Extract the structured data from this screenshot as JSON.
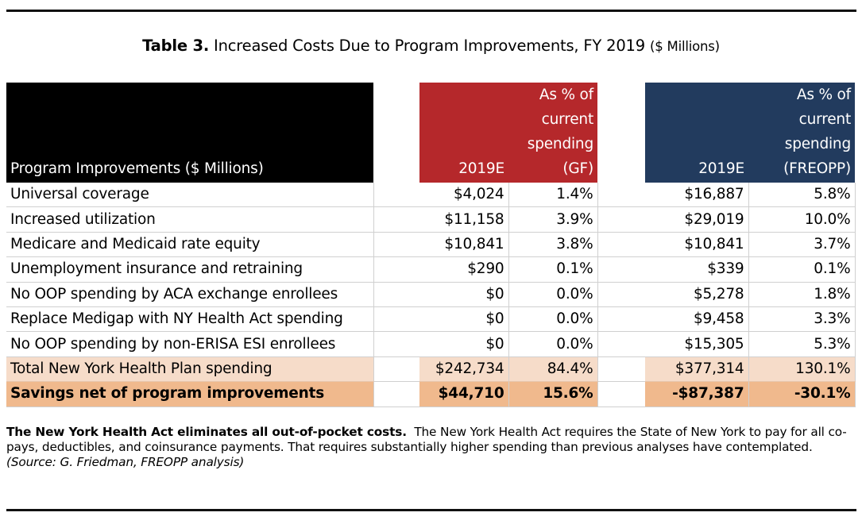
{
  "title": {
    "label": "Table 3.",
    "text": "Increased Costs Due to Program Improvements, FY 2019",
    "units": "($ Millions)"
  },
  "table": {
    "headers": {
      "label": "Program Improvements ($ Millions)",
      "gf_value": "2019E",
      "gf_pct": [
        "As % of",
        "current",
        "spending",
        "(GF)"
      ],
      "freopp_value": "2019E",
      "freopp_pct": [
        "As % of",
        "current",
        "spending",
        "(FREOPP)"
      ]
    },
    "rows": [
      {
        "label": "Universal coverage",
        "gf": "$4,024",
        "gf_pct": "1.4%",
        "fr": "$16,887",
        "fr_pct": "5.8%"
      },
      {
        "label": "Increased utilization",
        "gf": "$11,158",
        "gf_pct": "3.9%",
        "fr": "$29,019",
        "fr_pct": "10.0%"
      },
      {
        "label": "Medicare and Medicaid rate equity",
        "gf": "$10,841",
        "gf_pct": "3.8%",
        "fr": "$10,841",
        "fr_pct": "3.7%"
      },
      {
        "label": "Unemployment insurance and retraining",
        "gf": "$290",
        "gf_pct": "0.1%",
        "fr": "$339",
        "fr_pct": "0.1%"
      },
      {
        "label": "No OOP spending by ACA exchange enrollees",
        "gf": "$0",
        "gf_pct": "0.0%",
        "fr": "$5,278",
        "fr_pct": "1.8%"
      },
      {
        "label": "Replace Medigap with NY Health Act spending",
        "gf": "$0",
        "gf_pct": "0.0%",
        "fr": "$9,458",
        "fr_pct": "3.3%"
      },
      {
        "label": "No OOP spending by non-ERISA ESI enrollees",
        "gf": "$0",
        "gf_pct": "0.0%",
        "fr": "$15,305",
        "fr_pct": "5.3%"
      }
    ],
    "total": {
      "label": "Total New York Health Plan spending",
      "gf": "$242,734",
      "gf_pct": "84.4%",
      "fr": "$377,314",
      "fr_pct": "130.1%"
    },
    "savings": {
      "label": "Savings net of program improvements",
      "gf": "$44,710",
      "gf_pct": "15.6%",
      "fr": "-$87,387",
      "fr_pct": "-30.1%"
    }
  },
  "caption": {
    "lead": "The New York Health Act eliminates all out-of-pocket costs.",
    "body": "The New York Health Act requires the State of New York to pay for all co-pays, deductibles, and coinsurance payments. That requires substantially higher spending than previous analyses have contemplated.",
    "source": "(Source: G. Friedman, FREOPP analysis)"
  },
  "colors": {
    "header_black": "#000000",
    "header_red": "#b5282b",
    "header_blue": "#223b5e",
    "total_row": "#f6dcc9",
    "savings_row": "#f0b98d"
  }
}
